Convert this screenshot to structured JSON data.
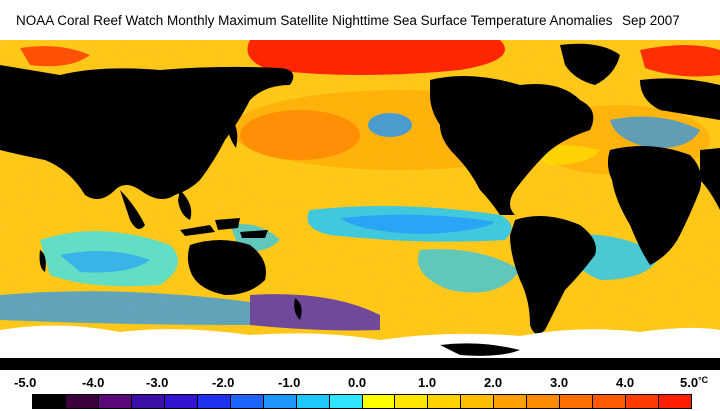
{
  "title": {
    "main": "NOAA Coral Reef Watch Monthly Maximum Satellite Nighttime Sea Surface Temperature Anomalies",
    "date": "Sep 2007"
  },
  "legend": {
    "unit": "°C",
    "labels": [
      "-5.0",
      "-4.0",
      "-3.0",
      "-2.0",
      "-1.0",
      "0.0",
      "1.0",
      "2.0",
      "3.0",
      "4.0",
      "5.0"
    ],
    "colors": [
      "#000000",
      "#3c003c",
      "#5a0a78",
      "#3a10a8",
      "#3214d2",
      "#1e32f0",
      "#1e64ff",
      "#1e96ff",
      "#1ec8ff",
      "#2ee6ff",
      "#ffff00",
      "#ffe600",
      "#ffd200",
      "#ffbe00",
      "#ffa000",
      "#ff8c00",
      "#ff6e00",
      "#ff5a00",
      "#ff3c00",
      "#ff1e00"
    ]
  },
  "map": {
    "land_color": "#000000",
    "ice_color": "#ffffff",
    "dominant_ocean_color": "#ffc81e"
  }
}
